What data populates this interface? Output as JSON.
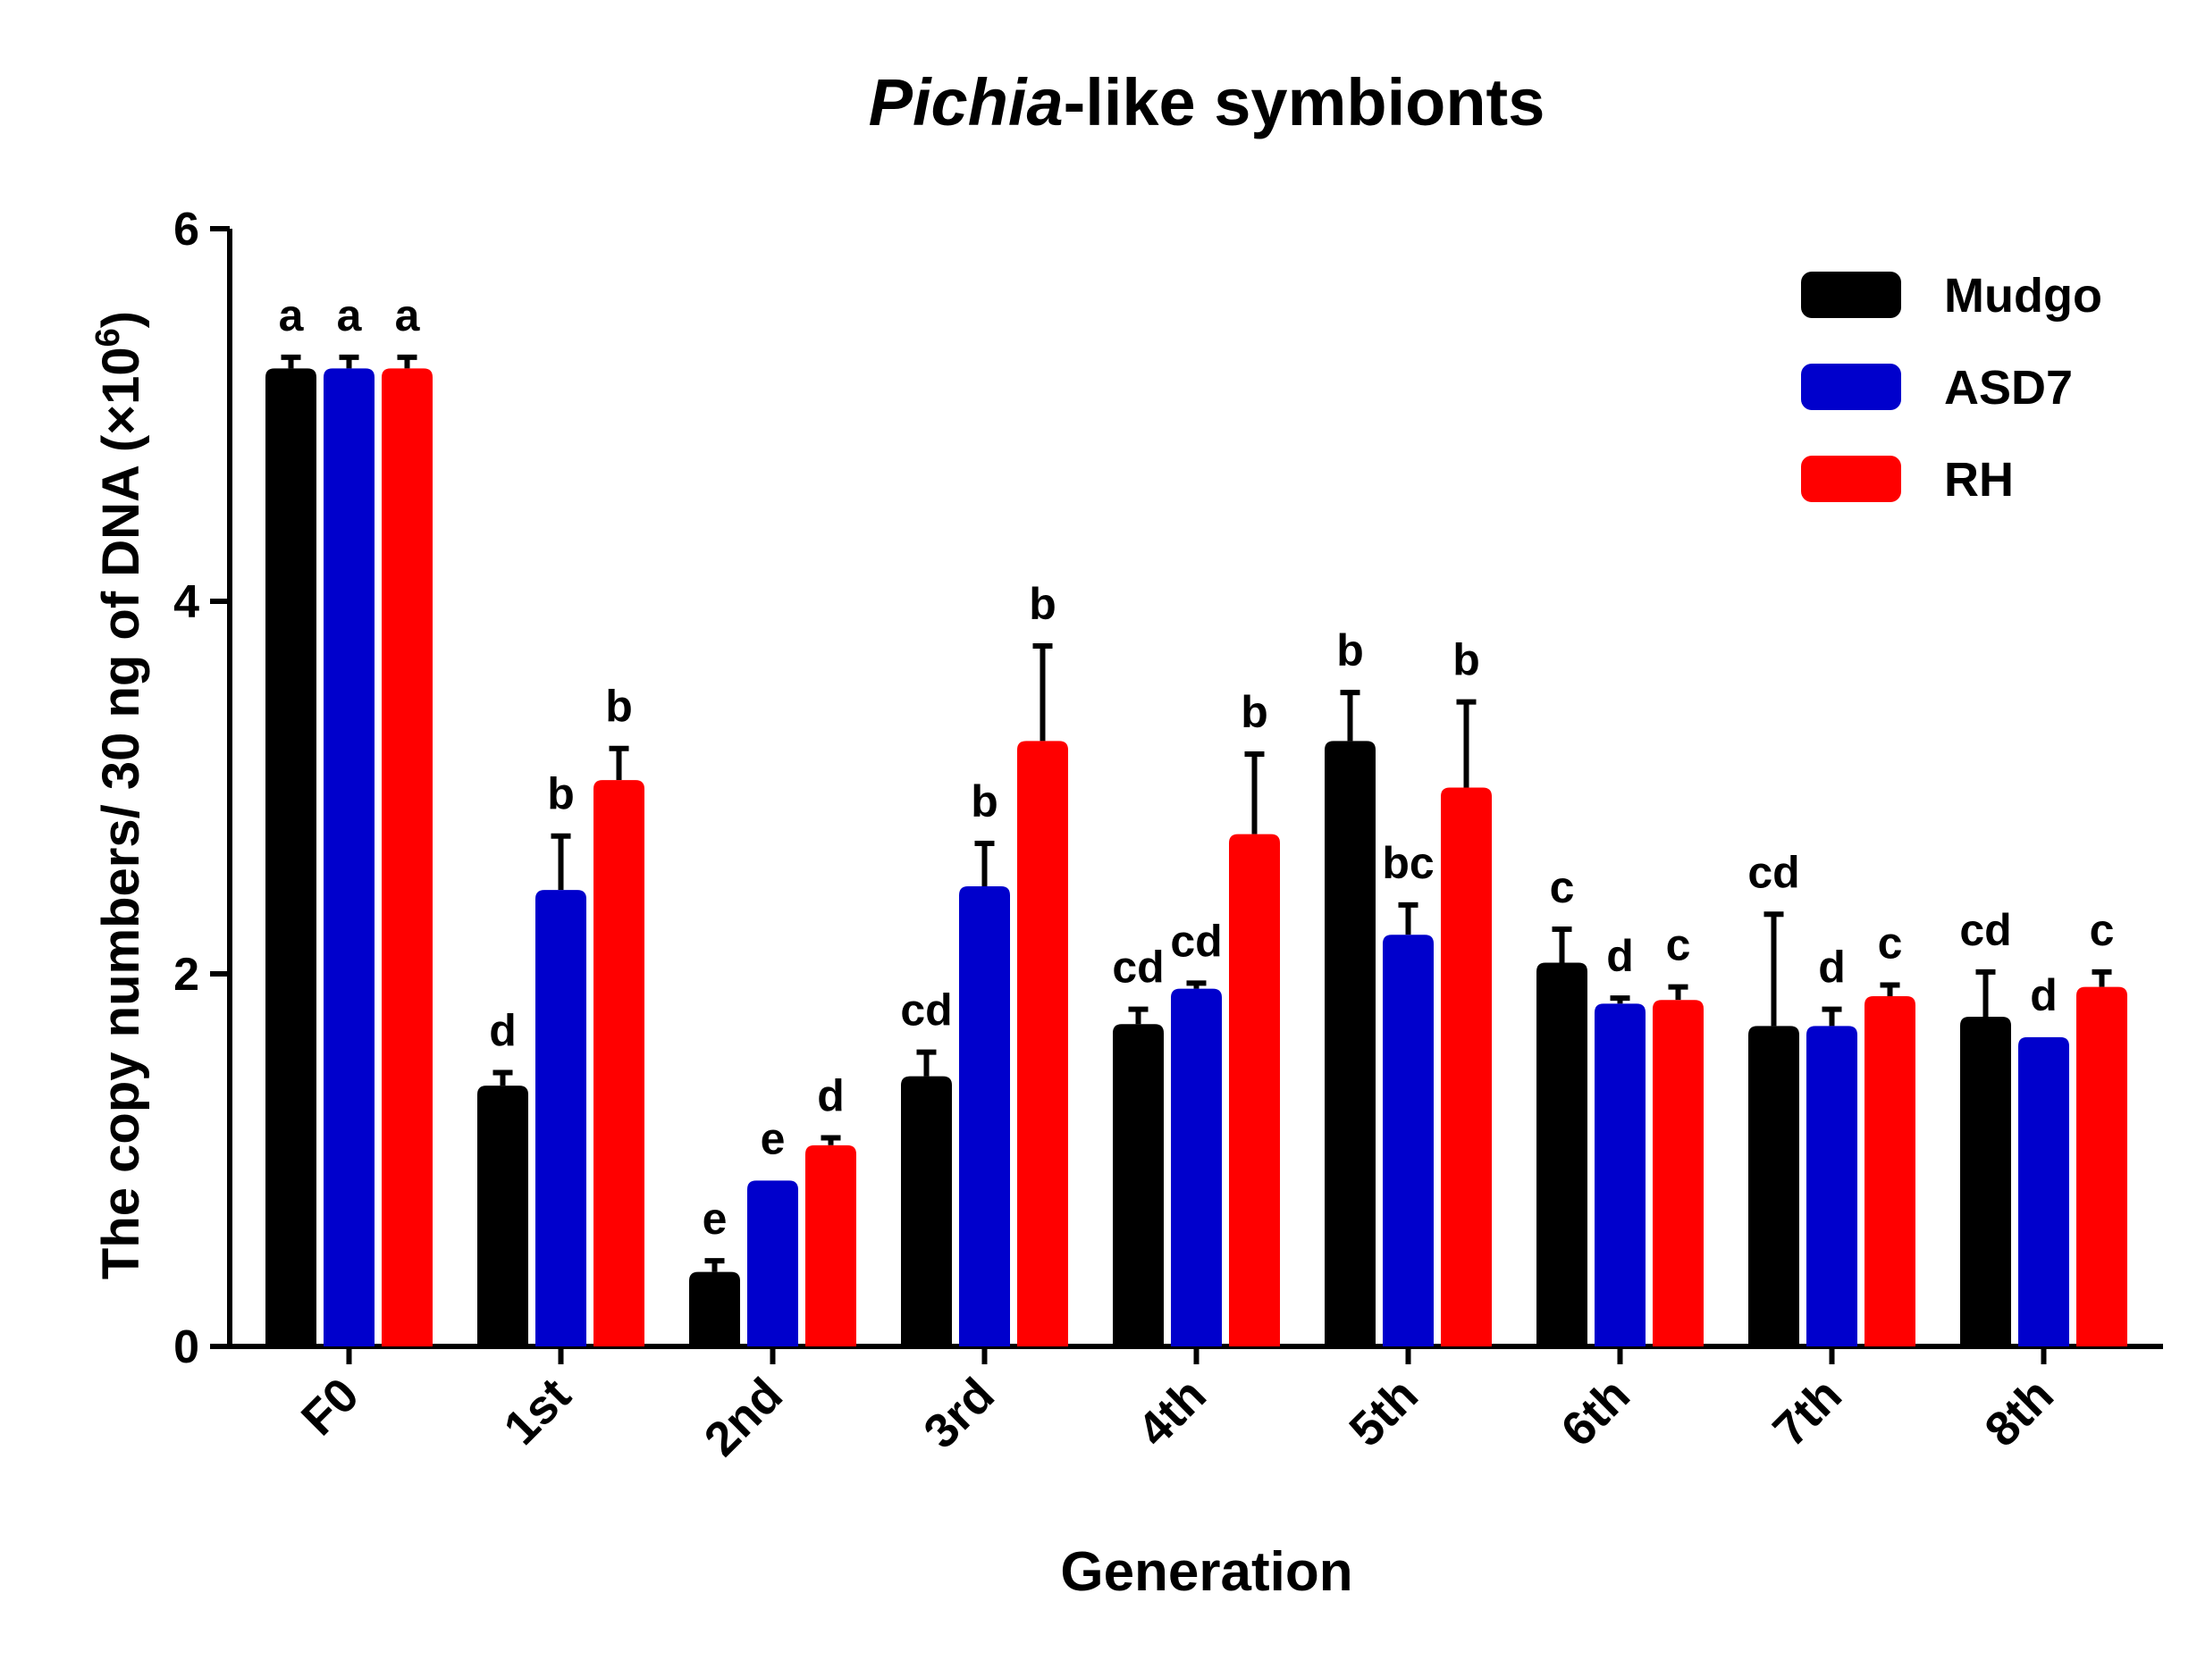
{
  "chart_data": {
    "type": "bar",
    "title_italic": "Pichia",
    "title_rest": "-like symbionts",
    "xlabel": "Generation",
    "ylabel_main": "The copy numbers/ 30 ng of DNA (×10",
    "ylabel_exp": "6",
    "ylabel_close": ")",
    "ylim": [
      0,
      6
    ],
    "yticks": [
      "0",
      "2",
      "4",
      "6"
    ],
    "categories": [
      "F0",
      "1st",
      "2nd",
      "3rd",
      "4th",
      "5th",
      "6th",
      "7th",
      "8th"
    ],
    "series": [
      {
        "name": "Mudgo",
        "color": "#000000",
        "values": [
          5.25,
          1.4,
          0.4,
          1.45,
          1.73,
          3.25,
          2.06,
          1.72,
          1.77
        ],
        "errors": [
          0.06,
          0.07,
          0.06,
          0.13,
          0.08,
          0.26,
          0.18,
          0.6,
          0.24
        ],
        "letters": [
          "a",
          "d",
          "e",
          "cd",
          "cd",
          "b",
          "c",
          "cd",
          "cd"
        ]
      },
      {
        "name": "ASD7",
        "color": "#0000cc",
        "values": [
          5.25,
          2.45,
          0.89,
          2.47,
          1.92,
          2.21,
          1.84,
          1.72,
          1.66
        ],
        "errors": [
          0.06,
          0.29,
          0.0,
          0.23,
          0.03,
          0.16,
          0.03,
          0.09,
          0.0
        ],
        "letters": [
          "a",
          "b",
          "e",
          "b",
          "cd",
          "bc",
          "d",
          "d",
          "d"
        ]
      },
      {
        "name": "RH",
        "color": "#ff0000",
        "values": [
          5.25,
          3.04,
          1.08,
          3.25,
          2.75,
          3.0,
          1.86,
          1.88,
          1.93
        ],
        "errors": [
          0.06,
          0.17,
          0.04,
          0.51,
          0.43,
          0.46,
          0.07,
          0.06,
          0.08
        ],
        "letters": [
          "a",
          "b",
          "d",
          "b",
          "b",
          "b",
          "c",
          "c",
          "c"
        ]
      }
    ],
    "legend_position": "top-right"
  }
}
